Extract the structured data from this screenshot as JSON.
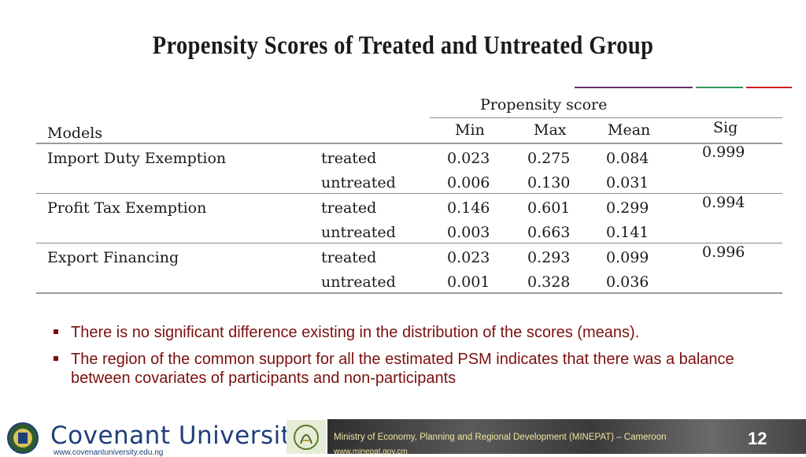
{
  "slide": {
    "title": "Propensity Scores of Treated and Untreated Group",
    "accent_colors": [
      "#6b2d6b",
      "#2f9a5e",
      "#cc2222"
    ]
  },
  "table": {
    "group_header": "Propensity score",
    "headers": {
      "models": "Models",
      "min": "Min",
      "max": "Max",
      "mean": "Mean",
      "sig": "Sig"
    },
    "rows": [
      {
        "model": "Import Duty Exemption",
        "sig": "0.999",
        "treated": {
          "label": "treated",
          "min": "0.023",
          "max": "0.275",
          "mean": "0.084"
        },
        "untreated": {
          "label": "untreated",
          "min": "0.006",
          "max": "0.130",
          "mean": "0.031"
        }
      },
      {
        "model": "Profit Tax Exemption",
        "sig": "0.994",
        "treated": {
          "label": "treated",
          "min": "0.146",
          "max": "0.601",
          "mean": "0.299"
        },
        "untreated": {
          "label": "untreated",
          "min": "0.003",
          "max": "0.663",
          "mean": "0.141"
        }
      },
      {
        "model": "Export Financing",
        "sig": "0.996",
        "treated": {
          "label": "treated",
          "min": "0.023",
          "max": "0.293",
          "mean": "0.099"
        },
        "untreated": {
          "label": "untreated",
          "min": "0.001",
          "max": "0.328",
          "mean": "0.036"
        }
      }
    ]
  },
  "bullets": [
    "There is no significant difference existing in the distribution of the scores (means).",
    "The region of the common support for all the estimated PSM indicates that there was a balance between covariates of participants and non-participants"
  ],
  "footer": {
    "university_name": "Covenant University",
    "university_url": "www.covenantuniversity.edu.ng",
    "ministry": "Ministry of Economy, Planning and Regional Development (MINEPAT) – Cameroon",
    "ministry_url": "www.minepat.gov.cm",
    "page_number": "12"
  }
}
